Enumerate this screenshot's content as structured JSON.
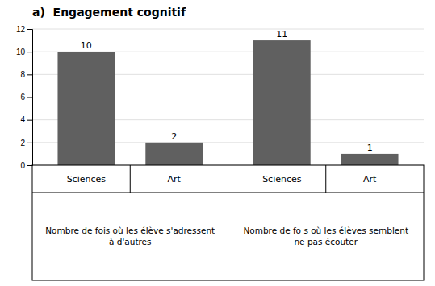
{
  "chart_data": {
    "type": "bar",
    "title": "a)  Engagement cognitif",
    "categories": [
      "Sciences",
      "Art",
      "Sciences",
      "Art"
    ],
    "group_labels": [
      "Nombre de fois où les élève s'adressent\nà d'autres",
      "Nombre de fo s où les élèves semblent\nne pas écouter"
    ],
    "values": [
      10,
      2,
      11,
      1
    ],
    "color": "#606060",
    "ylim": [
      0,
      12
    ],
    "yticks": [
      0,
      2,
      4,
      6,
      8,
      10,
      12
    ],
    "grid": true,
    "data_labels": true
  }
}
